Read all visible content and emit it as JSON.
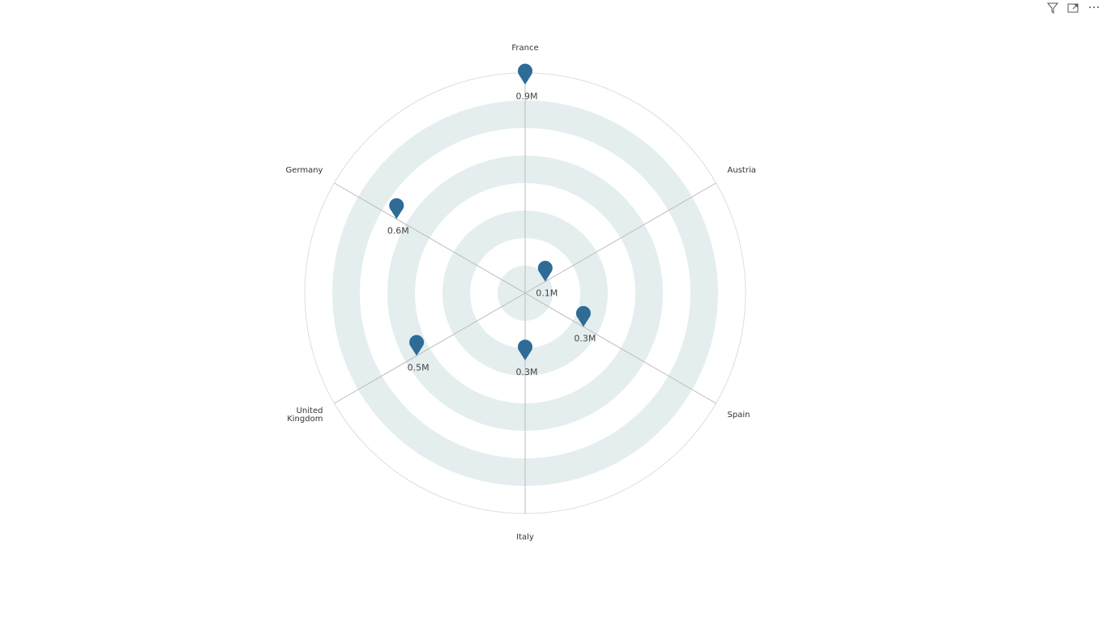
{
  "chart_data": {
    "type": "radial",
    "categories": [
      "France",
      "Austria",
      "Spain",
      "Italy",
      "United Kingdom",
      "Germany"
    ],
    "values": [
      0.9,
      0.1,
      0.29,
      0.29,
      0.54,
      0.64
    ],
    "value_labels": [
      "0.9M",
      "0.1M",
      "0.3M",
      "0.3M",
      "0.5M",
      "0.6M"
    ],
    "color": "#2e6b96",
    "rlim": [
      0,
      0.95
    ]
  }
}
